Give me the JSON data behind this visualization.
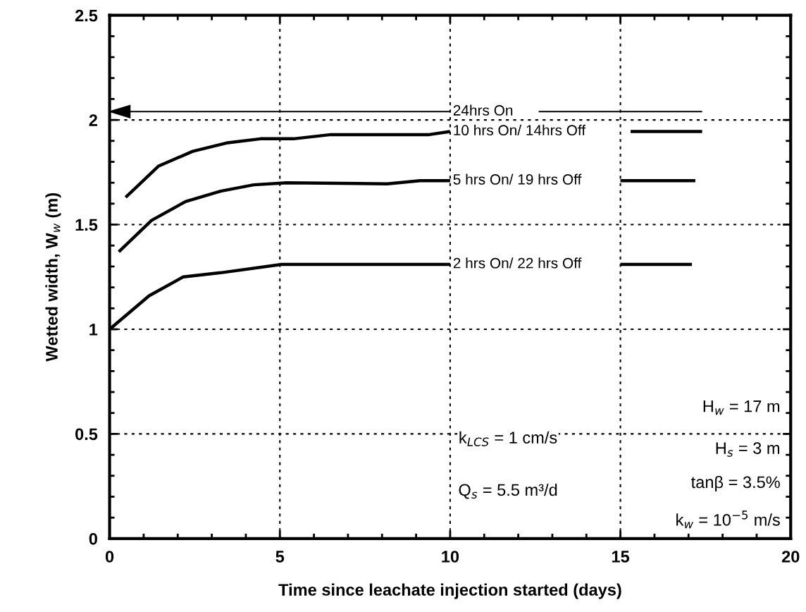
{
  "chart_data": {
    "type": "line",
    "xlabel": "Time since leachate injection started (days)",
    "ylabel": "Wetted width, W$_{w}$ (m)",
    "xlim": [
      0,
      20
    ],
    "ylim": [
      0,
      2.5
    ],
    "xticks": [
      0,
      5,
      10,
      15,
      20
    ],
    "yticks": [
      0,
      0.5,
      1,
      1.5,
      2,
      2.5
    ],
    "grid": true,
    "legend": false,
    "marker": "none",
    "line_style": "solid",
    "series": [
      {
        "name": "24hrs On",
        "color": "#000000",
        "x": [
          0,
          10,
          null,
          12.6,
          17.4
        ],
        "values": [
          2.04,
          2.04,
          null,
          2.04,
          2.04
        ]
      },
      {
        "name": "10 hrs On/ 14hrs Off",
        "color": "#000000",
        "x": [
          0.47,
          1.44,
          2.44,
          3.43,
          4.43,
          5.4,
          6.5,
          9.39,
          10.0,
          null,
          15.3,
          17.4
        ],
        "values": [
          1.63,
          1.78,
          1.85,
          1.89,
          1.91,
          1.91,
          1.93,
          1.93,
          1.945,
          null,
          1.945,
          1.945
        ]
      },
      {
        "name": "5 hrs On/ 19 hrs Off",
        "color": "#000000",
        "x": [
          0.27,
          1.23,
          2.23,
          3.26,
          4.23,
          5.2,
          8.15,
          9.12,
          10.0,
          null,
          15.0,
          17.2
        ],
        "values": [
          1.37,
          1.52,
          1.61,
          1.66,
          1.69,
          1.7,
          1.695,
          1.71,
          1.71,
          null,
          1.71,
          1.71
        ]
      },
      {
        "name": "2 hrs On/ 22 hrs Off",
        "color": "#000000",
        "x": [
          0,
          1.16,
          2.16,
          3.26,
          5.05,
          10.0,
          null,
          15.0,
          17.1
        ],
        "values": [
          1.0,
          1.16,
          1.25,
          1.27,
          1.31,
          1.31,
          null,
          1.31,
          1.31
        ]
      }
    ],
    "annotations": [
      "k$_{LCS}$ = 1 cm/s",
      "Q$_{s}$ = 5.5 m³/d",
      "H$_{w}$ = 17 m",
      "H$_{s}$ = 3 m",
      "tanβ = 3.5%",
      "k$_{w}$ = 10$^{−5}$ m/s"
    ]
  }
}
